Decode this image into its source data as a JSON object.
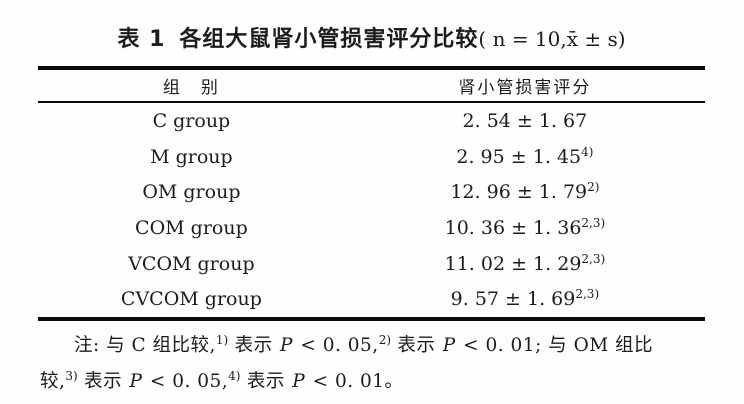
{
  "caption": {
    "label": "表 1",
    "title": "各组大鼠肾小管损害评分比较",
    "stats": "( n = 10,x̄ ± s)"
  },
  "table": {
    "columns": [
      "组　别",
      "肾小管损害评分"
    ],
    "rows": [
      {
        "group": "C group",
        "score": "2. 54 ± 1. 67",
        "sup": ""
      },
      {
        "group": "M group",
        "score": "2. 95 ± 1. 45",
        "sup": "4)"
      },
      {
        "group": "OM group",
        "score": "12. 96 ± 1. 79",
        "sup": "2)"
      },
      {
        "group": "COM group",
        "score": "10. 36 ± 1. 36",
        "sup": "2,3)"
      },
      {
        "group": "VCOM group",
        "score": "11. 02 ± 1. 29",
        "sup": "2,3)"
      },
      {
        "group": "CVCOM group",
        "score": "9. 57 ± 1. 69",
        "sup": "2,3)"
      }
    ]
  },
  "footnote": {
    "line1": {
      "s1": "注: 与 C 组比较,",
      "sup1": "1)",
      "s2": " 表示 ",
      "p1": "P",
      "s3": " < 0. 05,",
      "sup2": "2)",
      "s4": " 表示 ",
      "p2": "P",
      "s5": " < 0. 01; 与 OM 组比"
    },
    "line2": {
      "s1": "较,",
      "sup1": "3)",
      "s2": " 表示 ",
      "p1": "P",
      "s3": " < 0. 05,",
      "sup2": "4)",
      "s4": " 表示 ",
      "p2": "P",
      "s5": " < 0. 01。"
    }
  },
  "colors": {
    "background": "#fefefe",
    "text": "#1c1c1c",
    "rule": "#0a0a0a"
  }
}
